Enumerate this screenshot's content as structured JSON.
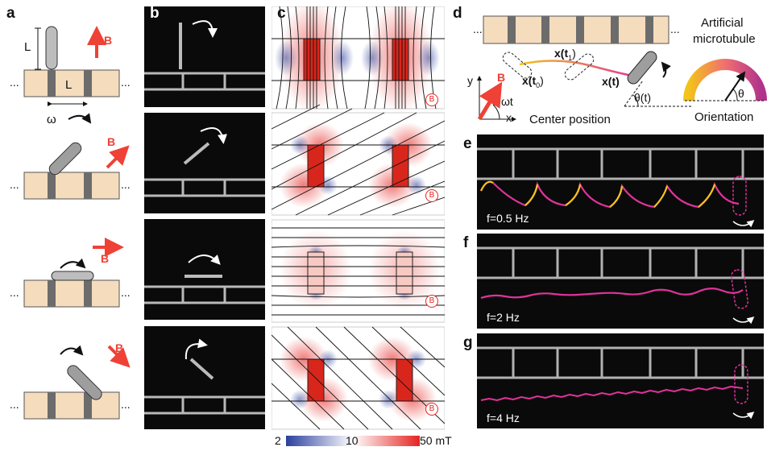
{
  "panel_labels": {
    "a": "a",
    "b": "b",
    "c": "c",
    "d": "d",
    "e": "e",
    "f": "f",
    "g": "g"
  },
  "panel_a": {
    "length_label_vertical": "L",
    "length_label_horizontal": "L",
    "field_label": "B",
    "angular_velocity_label": "ω",
    "ellipsis": "..."
  },
  "panel_c": {
    "field_badge": "B",
    "colorbar": {
      "min": "2",
      "mid": "10",
      "max": "50 mT"
    }
  },
  "panel_d": {
    "title_line1": "Artificial",
    "title_line2": "microtubule",
    "center_position_label": "Center position",
    "orientation_label": "Orientation",
    "axis_y": "y",
    "axis_x": "x",
    "field_label": "B",
    "omega_t_label": "ωt",
    "x_t0_label": "x(t",
    "x_t0_sub": "0",
    "x_t1_label": "x(t",
    "x_t1_sub": "1",
    "x_t_label": "x(t)",
    "theta_t_label": "θ(t)",
    "theta_label": "θ",
    "ellipsis": "..."
  },
  "frequencies": {
    "e": "f=0.5 Hz",
    "f": "f=2 Hz",
    "g": "f=4 Hz"
  },
  "colors": {
    "magnet_fill": "#f4dcbd",
    "magnet_dark": "#6c6c6c",
    "field_arrow": "#ef4136",
    "trajectory_magenta": "#e0339a",
    "trajectory_yellow": "#f3c31a",
    "colormap_low": "#2b3f9e",
    "colormap_mid": "#ffffff",
    "colormap_high": "#e52420"
  }
}
